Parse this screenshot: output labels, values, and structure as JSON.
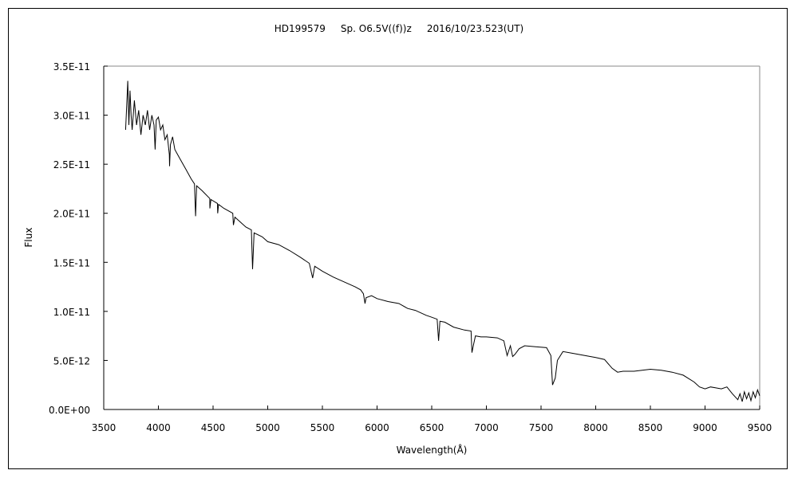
{
  "chart_data": {
    "type": "line",
    "title": "HD199579     Sp. O6.5V((f))z     2016/10/23.523(UT)",
    "xlabel": "Wavelength(Å)",
    "ylabel": "Flux",
    "xlim": [
      3500,
      9500
    ],
    "ylim": [
      0,
      3.5e-11
    ],
    "grid": false,
    "x_ticks": [
      3500,
      4000,
      4500,
      5000,
      5500,
      6000,
      6500,
      7000,
      7500,
      8000,
      8500,
      9000,
      9500
    ],
    "x_tick_labels": [
      "3500",
      "4000",
      "4500",
      "5000",
      "5500",
      "6000",
      "6500",
      "7000",
      "7500",
      "8000",
      "8500",
      "9000",
      "9500"
    ],
    "y_ticks": [
      0,
      5e-12,
      1e-11,
      1.5e-11,
      2e-11,
      2.5e-11,
      3e-11,
      3.5e-11
    ],
    "y_tick_labels": [
      "0.0E+00",
      "5.0E-12",
      "1.0E-11",
      "1.5E-11",
      "2.0E-11",
      "2.5E-11",
      "3.0E-11",
      "3.5E-11"
    ],
    "y_unit_scale": 1e-12,
    "series": [
      {
        "name": "HD199579",
        "color": "#000000",
        "points": [
          [
            3700,
            28.5
          ],
          [
            3710,
            31
          ],
          [
            3720,
            33.5
          ],
          [
            3730,
            29
          ],
          [
            3740,
            32.5
          ],
          [
            3750,
            30
          ],
          [
            3760,
            28.5
          ],
          [
            3780,
            31.5
          ],
          [
            3800,
            29
          ],
          [
            3820,
            30.5
          ],
          [
            3840,
            28
          ],
          [
            3860,
            30
          ],
          [
            3880,
            29
          ],
          [
            3900,
            30.5
          ],
          [
            3920,
            28.5
          ],
          [
            3940,
            30
          ],
          [
            3960,
            29
          ],
          [
            3970,
            26.5
          ],
          [
            3980,
            29.5
          ],
          [
            4000,
            29.8
          ],
          [
            4020,
            28.5
          ],
          [
            4040,
            29
          ],
          [
            4060,
            27.5
          ],
          [
            4080,
            28
          ],
          [
            4100,
            26
          ],
          [
            4102,
            24.8
          ],
          [
            4110,
            27
          ],
          [
            4130,
            27.8
          ],
          [
            4150,
            26.5
          ],
          [
            4200,
            25.5
          ],
          [
            4250,
            24.5
          ],
          [
            4300,
            23.5
          ],
          [
            4330,
            23
          ],
          [
            4340,
            19.7
          ],
          [
            4350,
            22.8
          ],
          [
            4400,
            22.3
          ],
          [
            4470,
            21.5
          ],
          [
            4471,
            20.5
          ],
          [
            4480,
            21.4
          ],
          [
            4540,
            21
          ],
          [
            4542,
            20
          ],
          [
            4550,
            20.9
          ],
          [
            4600,
            20.5
          ],
          [
            4680,
            20
          ],
          [
            4686,
            18.8
          ],
          [
            4700,
            19.6
          ],
          [
            4800,
            18.6
          ],
          [
            4850,
            18.3
          ],
          [
            4861,
            14.3
          ],
          [
            4875,
            18
          ],
          [
            4950,
            17.6
          ],
          [
            5000,
            17.1
          ],
          [
            5100,
            16.8
          ],
          [
            5200,
            16.2
          ],
          [
            5300,
            15.5
          ],
          [
            5380,
            14.9
          ],
          [
            5411,
            13.4
          ],
          [
            5430,
            14.6
          ],
          [
            5500,
            14.1
          ],
          [
            5600,
            13.5
          ],
          [
            5700,
            13
          ],
          [
            5800,
            12.5
          ],
          [
            5850,
            12.2
          ],
          [
            5875,
            11.8
          ],
          [
            5890,
            10.8
          ],
          [
            5900,
            11.4
          ],
          [
            5950,
            11.6
          ],
          [
            6000,
            11.3
          ],
          [
            6100,
            11
          ],
          [
            6200,
            10.8
          ],
          [
            6280,
            10.3
          ],
          [
            6350,
            10.1
          ],
          [
            6450,
            9.6
          ],
          [
            6500,
            9.4
          ],
          [
            6550,
            9.2
          ],
          [
            6563,
            7.0
          ],
          [
            6575,
            9
          ],
          [
            6620,
            8.9
          ],
          [
            6700,
            8.4
          ],
          [
            6800,
            8.1
          ],
          [
            6860,
            8.0
          ],
          [
            6868,
            5.8
          ],
          [
            6880,
            6.5
          ],
          [
            6900,
            7.5
          ],
          [
            6950,
            7.4
          ],
          [
            7000,
            7.4
          ],
          [
            7100,
            7.3
          ],
          [
            7160,
            7.0
          ],
          [
            7190,
            5.5
          ],
          [
            7220,
            6.5
          ],
          [
            7240,
            5.4
          ],
          [
            7260,
            5.6
          ],
          [
            7300,
            6.2
          ],
          [
            7350,
            6.5
          ],
          [
            7450,
            6.4
          ],
          [
            7550,
            6.3
          ],
          [
            7590,
            5.5
          ],
          [
            7605,
            2.5
          ],
          [
            7630,
            3.2
          ],
          [
            7650,
            5.0
          ],
          [
            7700,
            5.9
          ],
          [
            7800,
            5.7
          ],
          [
            7900,
            5.5
          ],
          [
            8000,
            5.3
          ],
          [
            8080,
            5.1
          ],
          [
            8150,
            4.2
          ],
          [
            8200,
            3.8
          ],
          [
            8250,
            3.9
          ],
          [
            8350,
            3.9
          ],
          [
            8500,
            4.1
          ],
          [
            8600,
            4.0
          ],
          [
            8700,
            3.8
          ],
          [
            8800,
            3.5
          ],
          [
            8900,
            2.8
          ],
          [
            8950,
            2.3
          ],
          [
            9000,
            2.1
          ],
          [
            9050,
            2.3
          ],
          [
            9100,
            2.2
          ],
          [
            9150,
            2.1
          ],
          [
            9200,
            2.3
          ],
          [
            9250,
            1.6
          ],
          [
            9300,
            1.0
          ],
          [
            9320,
            1.6
          ],
          [
            9340,
            0.8
          ],
          [
            9360,
            1.8
          ],
          [
            9380,
            1.1
          ],
          [
            9400,
            1.7
          ],
          [
            9420,
            0.9
          ],
          [
            9440,
            1.8
          ],
          [
            9460,
            1.2
          ],
          [
            9480,
            2.0
          ],
          [
            9500,
            1.4
          ]
        ]
      }
    ]
  }
}
